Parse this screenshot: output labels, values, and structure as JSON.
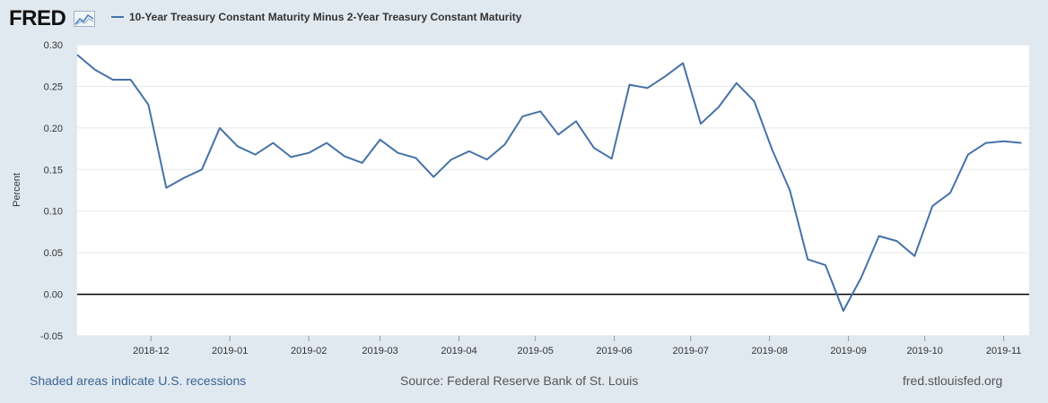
{
  "header": {
    "logo_text": "FRED",
    "logo_icon": "chart-graph-icon",
    "legend_label": "10-Year Treasury Constant Maturity Minus 2-Year Treasury Constant Maturity"
  },
  "footer": {
    "recession_note": "Shaded areas indicate U.S. recessions",
    "source": "Source: Federal Reserve Bank of St. Louis",
    "site": "fred.stlouisfed.org"
  },
  "colors": {
    "series": "#4572a7",
    "background": "#e1e9f0",
    "plot": "#ffffff",
    "zero_line": "#000000",
    "grid": "#e6e6e6"
  },
  "chart_data": {
    "type": "line",
    "title": "",
    "xlabel": "",
    "ylabel": "Percent",
    "ylim": [
      -0.05,
      0.3
    ],
    "yticks": [
      -0.05,
      0.0,
      0.05,
      0.1,
      0.15,
      0.2,
      0.25,
      0.3
    ],
    "ytick_labels": [
      "-0.05",
      "0.00",
      "0.05",
      "0.10",
      "0.15",
      "0.20",
      "0.25",
      "0.30"
    ],
    "xlim": [
      "2018-11-02",
      "2019-11-11"
    ],
    "xticks": [
      "2018-12-01",
      "2019-01-01",
      "2019-02-01",
      "2019-03-01",
      "2019-04-01",
      "2019-05-01",
      "2019-06-01",
      "2019-07-01",
      "2019-08-01",
      "2019-09-01",
      "2019-10-01",
      "2019-11-01"
    ],
    "xtick_labels": [
      "2018-12",
      "2019-01",
      "2019-02",
      "2019-03",
      "2019-04",
      "2019-05",
      "2019-06",
      "2019-07",
      "2019-08",
      "2019-09",
      "2019-10",
      "2019-11"
    ],
    "grid": "horizontal",
    "zero_line": true,
    "series": [
      {
        "name": "10-Year Treasury Constant Maturity Minus 2-Year Treasury Constant Maturity",
        "x": [
          "2018-11-02",
          "2018-11-09",
          "2018-11-16",
          "2018-11-23",
          "2018-11-30",
          "2018-12-07",
          "2018-12-14",
          "2018-12-21",
          "2018-12-28",
          "2019-01-04",
          "2019-01-11",
          "2019-01-18",
          "2019-01-25",
          "2019-02-01",
          "2019-02-08",
          "2019-02-15",
          "2019-02-22",
          "2019-03-01",
          "2019-03-08",
          "2019-03-15",
          "2019-03-22",
          "2019-03-29",
          "2019-04-05",
          "2019-04-12",
          "2019-04-19",
          "2019-04-26",
          "2019-05-03",
          "2019-05-10",
          "2019-05-17",
          "2019-05-24",
          "2019-05-31",
          "2019-06-07",
          "2019-06-14",
          "2019-06-21",
          "2019-06-28",
          "2019-07-05",
          "2019-07-12",
          "2019-07-19",
          "2019-07-26",
          "2019-08-02",
          "2019-08-09",
          "2019-08-16",
          "2019-08-23",
          "2019-08-30",
          "2019-09-06",
          "2019-09-13",
          "2019-09-20",
          "2019-09-27",
          "2019-10-04",
          "2019-10-11",
          "2019-10-18",
          "2019-10-25",
          "2019-11-01",
          "2019-11-08"
        ],
        "values": [
          0.288,
          0.27,
          0.258,
          0.258,
          0.228,
          0.128,
          0.14,
          0.15,
          0.2,
          0.178,
          0.168,
          0.182,
          0.165,
          0.17,
          0.182,
          0.166,
          0.158,
          0.186,
          0.17,
          0.164,
          0.141,
          0.162,
          0.172,
          0.162,
          0.18,
          0.214,
          0.22,
          0.192,
          0.208,
          0.176,
          0.163,
          0.252,
          0.248,
          0.262,
          0.278,
          0.205,
          0.225,
          0.254,
          0.232,
          0.174,
          0.125,
          0.042,
          0.035,
          -0.02,
          0.02,
          0.07,
          0.064,
          0.046,
          0.106,
          0.122,
          0.168,
          0.182,
          0.184,
          0.182
        ]
      }
    ]
  }
}
